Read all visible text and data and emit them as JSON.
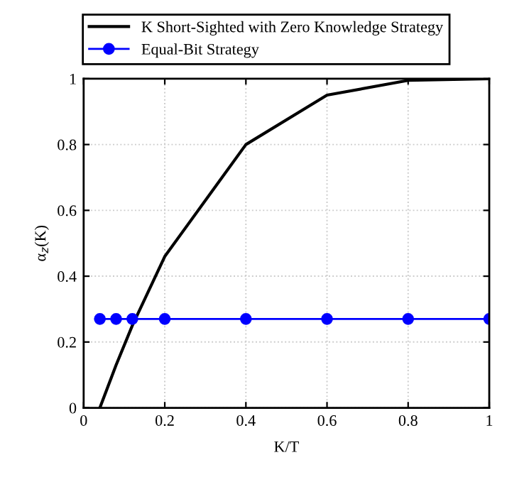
{
  "chart_data": {
    "type": "line",
    "xlabel": "K/T",
    "ylabel": "α$_{z}$(K)",
    "xlim": [
      0,
      1
    ],
    "ylim": [
      0,
      1
    ],
    "xticks": [
      0,
      0.2,
      0.4,
      0.6,
      0.8,
      1
    ],
    "yticks": [
      0,
      0.2,
      0.4,
      0.6,
      0.8,
      1
    ],
    "grid": true,
    "legend": "top",
    "line_style": "solid",
    "series": [
      {
        "name": "K Short-Sighted with Zero Knowledge Strategy",
        "color": "#000000",
        "marker": "none",
        "x": [
          0.04,
          0.08,
          0.12,
          0.2,
          0.4,
          0.6,
          0.8,
          1
        ],
        "values": [
          0,
          0.13,
          0.25,
          0.46,
          0.8,
          0.95,
          0.995,
          1
        ]
      },
      {
        "name": "Equal-Bit Strategy",
        "color": "#0000ff",
        "marker": "circle",
        "x": [
          0.04,
          0.08,
          0.12,
          0.2,
          0.4,
          0.6,
          0.8,
          1
        ],
        "values": [
          0.27,
          0.27,
          0.27,
          0.27,
          0.27,
          0.27,
          0.27,
          0.27
        ]
      }
    ]
  }
}
